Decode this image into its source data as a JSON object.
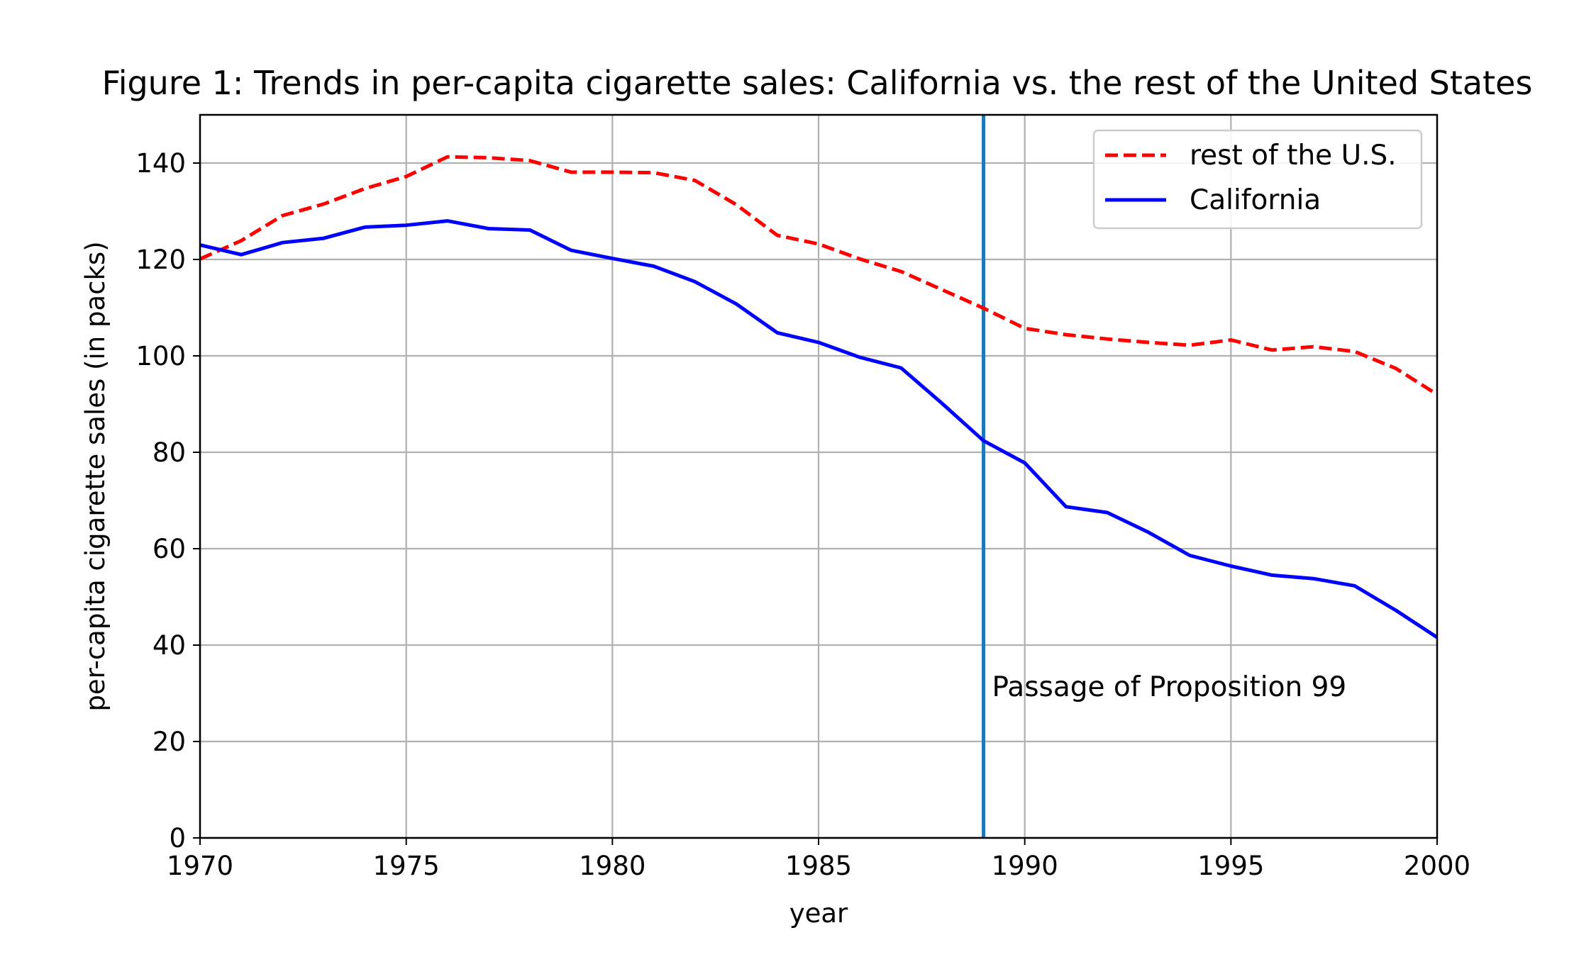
{
  "chart_data": {
    "type": "line",
    "title": "Figure 1: Trends in per-capita cigarette sales: California vs. the rest of the United States",
    "xlabel": "year",
    "ylabel": "per-capita cigarette sales (in packs)",
    "xlim": [
      1970,
      2000
    ],
    "ylim": [
      0,
      150
    ],
    "xticks": [
      1970,
      1975,
      1980,
      1985,
      1990,
      1995,
      2000
    ],
    "yticks": [
      0,
      20,
      40,
      60,
      80,
      100,
      120,
      140
    ],
    "grid": true,
    "legend": {
      "position": "top-right"
    },
    "x": [
      1970,
      1971,
      1972,
      1973,
      1974,
      1975,
      1976,
      1977,
      1978,
      1979,
      1980,
      1981,
      1982,
      1983,
      1984,
      1985,
      1986,
      1987,
      1988,
      1989,
      1990,
      1991,
      1992,
      1993,
      1994,
      1995,
      1996,
      1997,
      1998,
      1999,
      2000
    ],
    "series": [
      {
        "name": "rest of the U.S.",
        "color": "#ff0000",
        "style": "dashed",
        "values": [
          120.1,
          123.9,
          129.1,
          131.5,
          134.7,
          137.2,
          141.3,
          141.1,
          140.5,
          138.1,
          138.1,
          138.0,
          136.4,
          131.4,
          125.0,
          123.2,
          120.1,
          117.5,
          113.7,
          109.9,
          105.7,
          104.4,
          103.5,
          102.8,
          102.2,
          103.3,
          101.2,
          101.9,
          100.9,
          97.4,
          92.0
        ]
      },
      {
        "name": "California",
        "color": "#0000ff",
        "style": "solid",
        "values": [
          123.0,
          121.0,
          123.5,
          124.4,
          126.7,
          127.1,
          128.0,
          126.4,
          126.1,
          121.9,
          120.2,
          118.6,
          115.4,
          110.8,
          104.8,
          102.8,
          99.7,
          97.5,
          90.1,
          82.4,
          77.8,
          68.7,
          67.5,
          63.4,
          58.6,
          56.4,
          54.5,
          53.8,
          52.3,
          47.2,
          41.6
        ]
      }
    ],
    "annotations": [
      {
        "text": "Passage of Proposition 99",
        "x": 1989,
        "y": 30
      }
    ],
    "reference_lines": [
      {
        "axis": "x",
        "value": 1989,
        "color": "#1f77b4"
      }
    ]
  }
}
